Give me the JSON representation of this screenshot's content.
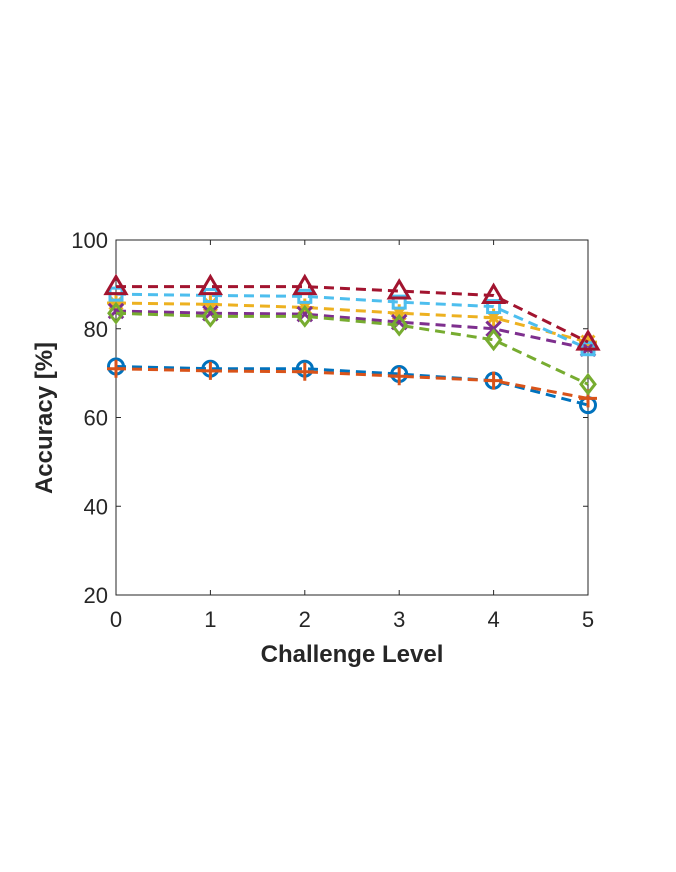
{
  "chart_data": {
    "type": "line",
    "title": "",
    "xlabel": "Challenge Level",
    "ylabel": "Accuracy [%]",
    "x": [
      0,
      1,
      2,
      3,
      4,
      5
    ],
    "xlim": [
      0,
      5
    ],
    "ylim": [
      20,
      100
    ],
    "xticks": [
      "0",
      "1",
      "2",
      "3",
      "4",
      "5"
    ],
    "yticks": [
      "20",
      "40",
      "60",
      "80",
      "100"
    ],
    "grid": false,
    "legend": false,
    "series": [
      {
        "values": [
          71.5,
          71.0,
          71.0,
          69.8,
          68.3,
          62.8
        ],
        "color": "#0072BD",
        "marker": "circle"
      },
      {
        "values": [
          71.0,
          70.5,
          70.3,
          69.3,
          68.3,
          64.3
        ],
        "color": "#D95319",
        "marker": "plus"
      },
      {
        "values": [
          85.8,
          85.5,
          84.8,
          83.5,
          82.5,
          77.0
        ],
        "color": "#EDB120",
        "marker": "asterisk"
      },
      {
        "values": [
          84.0,
          83.5,
          83.3,
          81.5,
          80.0,
          75.5
        ],
        "color": "#7E2F8E",
        "marker": "x"
      },
      {
        "values": [
          83.5,
          82.8,
          82.8,
          80.8,
          77.5,
          67.5
        ],
        "color": "#77AC30",
        "marker": "diamond"
      },
      {
        "values": [
          87.8,
          87.5,
          87.3,
          86.0,
          85.0,
          75.5
        ],
        "color": "#4DBEEE",
        "marker": "square"
      },
      {
        "values": [
          89.5,
          89.5,
          89.5,
          88.5,
          87.5,
          77.0
        ],
        "color": "#A2142F",
        "marker": "triangle"
      }
    ]
  }
}
